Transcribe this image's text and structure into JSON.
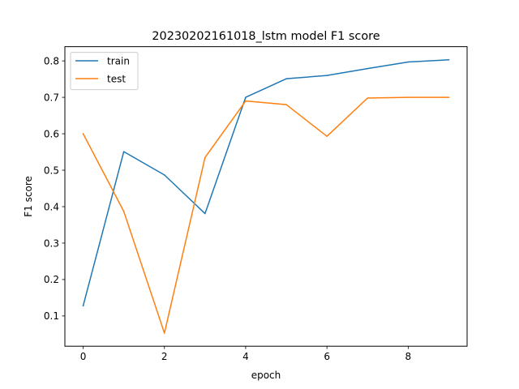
{
  "chart_data": {
    "type": "line",
    "title": "20230202161018_lstm model F1 score",
    "xlabel": "epoch",
    "ylabel": "F1 score",
    "x": [
      0,
      1,
      2,
      3,
      4,
      5,
      6,
      7,
      8,
      9
    ],
    "xlim": [
      -0.45,
      9.45
    ],
    "ylim": [
      0.017,
      0.839
    ],
    "xticks": [
      0,
      2,
      4,
      6,
      8
    ],
    "yticks": [
      0.1,
      0.2,
      0.3,
      0.4,
      0.5,
      0.6,
      0.7,
      0.8
    ],
    "grid": false,
    "legend_position": "upper left",
    "series": [
      {
        "name": "train",
        "color": "#1f77b4",
        "values": [
          0.128,
          0.551,
          0.487,
          0.381,
          0.7,
          0.751,
          0.76,
          0.779,
          0.797,
          0.803
        ]
      },
      {
        "name": "test",
        "color": "#ff7f0e",
        "values": [
          0.6,
          0.387,
          0.053,
          0.535,
          0.69,
          0.68,
          0.593,
          0.698,
          0.7,
          0.7
        ]
      }
    ]
  }
}
